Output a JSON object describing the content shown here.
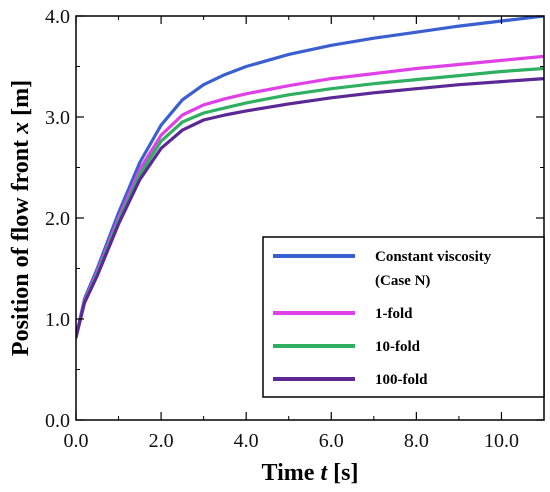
{
  "chart_data": {
    "type": "line",
    "xlabel": {
      "pre": "Time ",
      "var": "t",
      "post": " [s]"
    },
    "ylabel": {
      "pre": "Position of flow front ",
      "var": "x",
      "post": " [m]"
    },
    "xlim": [
      0,
      11
    ],
    "ylim": [
      0,
      4
    ],
    "xticks": [
      0,
      2,
      4,
      6,
      8,
      10
    ],
    "xtick_labels": [
      "0.0",
      "2.0",
      "4.0",
      "6.0",
      "8.0",
      "10.0"
    ],
    "yticks": [
      0,
      1,
      2,
      3,
      4
    ],
    "ytick_labels": [
      "0.0",
      "1.0",
      "2.0",
      "3.0",
      "4.0"
    ],
    "grid": false,
    "legend_position": "bottom-right",
    "series": [
      {
        "name": "Constant viscosity",
        "name_line2": "(Case N)",
        "color": "#3a5fd0",
        "x": [
          0,
          0.2,
          0.5,
          1.0,
          1.5,
          2.0,
          2.5,
          3.0,
          3.5,
          4.0,
          5.0,
          6.0,
          7.0,
          8.0,
          9.0,
          10.0,
          11.0
        ],
        "y": [
          0.82,
          1.2,
          1.5,
          2.05,
          2.55,
          2.92,
          3.17,
          3.32,
          3.42,
          3.5,
          3.62,
          3.71,
          3.78,
          3.84,
          3.9,
          3.95,
          4.0
        ]
      },
      {
        "name": "1-fold",
        "color": "#e040e8",
        "x": [
          0,
          0.2,
          0.5,
          1.0,
          1.5,
          2.0,
          2.5,
          3.0,
          3.5,
          4.0,
          5.0,
          6.0,
          7.0,
          8.0,
          9.0,
          10.0,
          11.0
        ],
        "y": [
          0.82,
          1.18,
          1.47,
          2.0,
          2.48,
          2.82,
          3.02,
          3.12,
          3.18,
          3.23,
          3.31,
          3.38,
          3.43,
          3.48,
          3.52,
          3.56,
          3.6
        ]
      },
      {
        "name": "10-fold",
        "color": "#2eb060",
        "x": [
          0,
          0.2,
          0.5,
          1.0,
          1.5,
          2.0,
          2.5,
          3.0,
          3.5,
          4.0,
          5.0,
          6.0,
          7.0,
          8.0,
          9.0,
          10.0,
          11.0
        ],
        "y": [
          0.82,
          1.17,
          1.45,
          1.97,
          2.43,
          2.76,
          2.95,
          3.04,
          3.09,
          3.14,
          3.22,
          3.28,
          3.33,
          3.37,
          3.41,
          3.45,
          3.48
        ]
      },
      {
        "name": "100-fold",
        "color": "#5c2896",
        "x": [
          0,
          0.2,
          0.5,
          1.0,
          1.5,
          2.0,
          2.5,
          3.0,
          3.5,
          4.0,
          5.0,
          6.0,
          7.0,
          8.0,
          9.0,
          10.0,
          11.0
        ],
        "y": [
          0.82,
          1.16,
          1.43,
          1.94,
          2.38,
          2.69,
          2.87,
          2.97,
          3.02,
          3.06,
          3.13,
          3.19,
          3.24,
          3.28,
          3.32,
          3.35,
          3.38
        ]
      }
    ]
  }
}
